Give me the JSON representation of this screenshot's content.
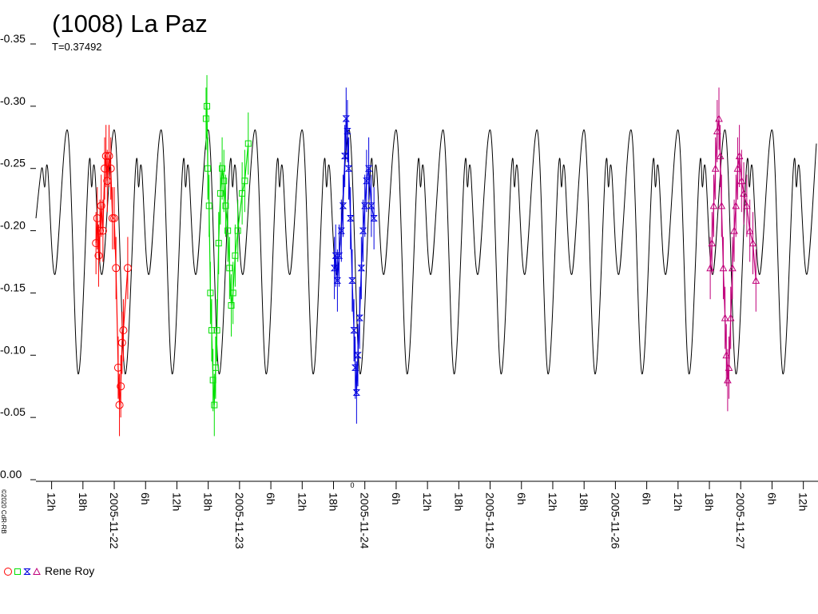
{
  "chart_data": {
    "type": "lightcurve",
    "title": "(1008) La Paz",
    "subtitle": "T=0.37492",
    "copyright": "©2020 CdR-RB",
    "zero_label": "0",
    "observer": "Rene Roy",
    "xlim": [
      "2005-11-21 09:00",
      "2005-11-27 14:30"
    ],
    "ylim": [
      0,
      -0.35
    ],
    "yticks": [
      {
        "value": 0,
        "label": "0.00"
      },
      {
        "value": -0.05,
        "label": "-0.05"
      },
      {
        "value": -0.1,
        "label": "-0.10"
      },
      {
        "value": -0.15,
        "label": "-0.15"
      },
      {
        "value": -0.2,
        "label": "-0.20"
      },
      {
        "value": -0.25,
        "label": "-0.25"
      },
      {
        "value": -0.3,
        "label": "-0.30"
      },
      {
        "value": -0.35,
        "label": "-0.35"
      }
    ],
    "xticks": [
      {
        "value": "2005-11-21 12:00",
        "label": "12h"
      },
      {
        "value": "2005-11-21 18:00",
        "label": "18h"
      },
      {
        "value": "2005-11-22 00:00",
        "label": "2005-11-22"
      },
      {
        "value": "2005-11-22 06:00",
        "label": "6h"
      },
      {
        "value": "2005-11-22 12:00",
        "label": "12h"
      },
      {
        "value": "2005-11-22 18:00",
        "label": "18h"
      },
      {
        "value": "2005-11-23 00:00",
        "label": "2005-11-23"
      },
      {
        "value": "2005-11-23 06:00",
        "label": "6h"
      },
      {
        "value": "2005-11-23 12:00",
        "label": "12h"
      },
      {
        "value": "2005-11-23 18:00",
        "label": "18h"
      },
      {
        "value": "2005-11-24 00:00",
        "label": "2005-11-24"
      },
      {
        "value": "2005-11-24 06:00",
        "label": "6h"
      },
      {
        "value": "2005-11-24 12:00",
        "label": "12h"
      },
      {
        "value": "2005-11-24 18:00",
        "label": "18h"
      },
      {
        "value": "2005-11-25 00:00",
        "label": "2005-11-25"
      },
      {
        "value": "2005-11-25 06:00",
        "label": "6h"
      },
      {
        "value": "2005-11-25 12:00",
        "label": "12h"
      },
      {
        "value": "2005-11-25 18:00",
        "label": "18h"
      },
      {
        "value": "2005-11-26 00:00",
        "label": "2005-11-26"
      },
      {
        "value": "2005-11-26 06:00",
        "label": "6h"
      },
      {
        "value": "2005-11-26 12:00",
        "label": "12h"
      },
      {
        "value": "2005-11-26 18:00",
        "label": "18h"
      },
      {
        "value": "2005-11-27 00:00",
        "label": "2005-11-27"
      },
      {
        "value": "2005-11-27 06:00",
        "label": "6h"
      },
      {
        "value": "2005-11-27 12:00",
        "label": "12h"
      }
    ],
    "model": {
      "color": "#000000",
      "x": [
        "2005-11-21 09:00",
        "2005-11-21 10:05",
        "2005-11-21 10:40",
        "2005-11-21 11:15",
        "2005-11-21 12:40",
        "2005-11-21 15:05",
        "2005-11-21 17:05",
        "2005-11-21 19:05",
        "2005-11-21 19:40",
        "2005-11-21 20:15",
        "2005-11-21 21:40",
        "2005-11-22 00:05",
        "2005-11-22 02:05",
        "2005-11-22 04:05",
        "2005-11-22 04:40",
        "2005-11-22 05:15",
        "2005-11-22 06:40",
        "2005-11-22 09:05",
        "2005-11-22 11:05",
        "2005-11-22 13:05",
        "2005-11-22 13:40",
        "2005-11-22 14:15",
        "2005-11-22 15:40",
        "2005-11-22 18:05",
        "2005-11-22 20:05",
        "2005-11-22 22:05",
        "2005-11-22 22:40",
        "2005-11-22 23:15",
        "2005-11-23 00:40",
        "2005-11-23 03:05",
        "2005-11-23 05:05",
        "2005-11-23 07:05",
        "2005-11-23 07:40",
        "2005-11-23 08:15",
        "2005-11-23 09:40",
        "2005-11-23 12:05",
        "2005-11-23 14:05",
        "2005-11-23 16:05",
        "2005-11-23 16:40",
        "2005-11-23 17:15",
        "2005-11-23 18:40",
        "2005-11-23 21:05",
        "2005-11-23 23:05",
        "2005-11-24 01:05",
        "2005-11-24 01:40",
        "2005-11-24 02:15",
        "2005-11-24 03:40",
        "2005-11-24 06:05",
        "2005-11-24 08:05",
        "2005-11-24 10:05",
        "2005-11-24 10:40",
        "2005-11-24 11:15",
        "2005-11-24 12:40",
        "2005-11-24 15:05",
        "2005-11-24 17:05",
        "2005-11-24 19:05",
        "2005-11-24 19:40",
        "2005-11-24 20:15",
        "2005-11-24 21:40",
        "2005-11-25 00:05",
        "2005-11-25 02:05",
        "2005-11-25 04:05",
        "2005-11-25 04:40",
        "2005-11-25 05:15",
        "2005-11-25 06:40",
        "2005-11-25 09:05",
        "2005-11-25 11:05",
        "2005-11-25 13:05",
        "2005-11-25 13:40",
        "2005-11-25 14:15",
        "2005-11-25 15:40",
        "2005-11-25 18:05",
        "2005-11-25 20:05",
        "2005-11-25 22:05",
        "2005-11-25 22:40",
        "2005-11-25 23:15",
        "2005-11-26 00:40",
        "2005-11-26 03:05",
        "2005-11-26 05:05",
        "2005-11-26 07:05",
        "2005-11-26 07:40",
        "2005-11-26 08:15",
        "2005-11-26 09:40",
        "2005-11-26 12:05",
        "2005-11-26 14:05",
        "2005-11-26 16:05",
        "2005-11-26 16:40",
        "2005-11-26 17:15",
        "2005-11-26 18:40",
        "2005-11-26 21:05",
        "2005-11-26 23:05",
        "2005-11-27 01:05",
        "2005-11-27 01:40",
        "2005-11-27 02:15",
        "2005-11-27 03:40",
        "2005-11-27 06:05",
        "2005-11-27 08:05",
        "2005-11-27 10:05",
        "2005-11-27 10:40",
        "2005-11-27 11:15",
        "2005-11-27 12:40",
        "2005-11-27 14:30"
      ],
      "values": [
        -0.21,
        -0.25,
        -0.235,
        -0.25,
        -0.165,
        -0.28,
        -0.085,
        -0.25,
        -0.235,
        -0.25,
        -0.165,
        -0.28,
        -0.085,
        -0.25,
        -0.235,
        -0.25,
        -0.165,
        -0.28,
        -0.085,
        -0.25,
        -0.235,
        -0.25,
        -0.165,
        -0.28,
        -0.085,
        -0.25,
        -0.235,
        -0.25,
        -0.165,
        -0.28,
        -0.085,
        -0.25,
        -0.235,
        -0.25,
        -0.165,
        -0.28,
        -0.085,
        -0.25,
        -0.235,
        -0.25,
        -0.165,
        -0.28,
        -0.085,
        -0.25,
        -0.235,
        -0.25,
        -0.165,
        -0.28,
        -0.085,
        -0.25,
        -0.235,
        -0.25,
        -0.165,
        -0.28,
        -0.085,
        -0.25,
        -0.235,
        -0.25,
        -0.165,
        -0.28,
        -0.085,
        -0.25,
        -0.235,
        -0.25,
        -0.165,
        -0.28,
        -0.085,
        -0.25,
        -0.235,
        -0.25,
        -0.165,
        -0.28,
        -0.085,
        -0.25,
        -0.235,
        -0.25,
        -0.165,
        -0.28,
        -0.085,
        -0.25,
        -0.235,
        -0.25,
        -0.165,
        -0.28,
        -0.085,
        -0.25,
        -0.235,
        -0.25,
        -0.165,
        -0.28,
        -0.085,
        -0.25,
        -0.235,
        -0.25,
        -0.165,
        -0.28,
        -0.085,
        -0.25,
        -0.235,
        -0.25,
        -0.165,
        -0.27
      ]
    },
    "series": [
      {
        "color": "#ff0000",
        "marker": "circle",
        "error": 0.025,
        "x": [
          "2005-11-21 20:30",
          "2005-11-21 20:45",
          "2005-11-21 21:00",
          "2005-11-21 21:15",
          "2005-11-21 21:30",
          "2005-11-21 21:50",
          "2005-11-21 22:10",
          "2005-11-21 22:25",
          "2005-11-21 22:40",
          "2005-11-21 23:00",
          "2005-11-21 23:20",
          "2005-11-21 23:40",
          "2005-11-22 00:00",
          "2005-11-22 00:20",
          "2005-11-22 00:45",
          "2005-11-22 01:00",
          "2005-11-22 01:15",
          "2005-11-22 01:30",
          "2005-11-22 01:45",
          "2005-11-22 02:35"
        ],
        "values": [
          -0.19,
          -0.21,
          -0.18,
          -0.2,
          -0.22,
          -0.2,
          -0.25,
          -0.26,
          -0.24,
          -0.26,
          -0.25,
          -0.21,
          -0.21,
          -0.17,
          -0.09,
          -0.06,
          -0.075,
          -0.11,
          -0.12,
          -0.17
        ]
      },
      {
        "color": "#00e000",
        "marker": "square",
        "error": 0.025,
        "x": [
          "2005-11-22 17:35",
          "2005-11-22 17:45",
          "2005-11-22 17:55",
          "2005-11-22 18:10",
          "2005-11-22 18:25",
          "2005-11-22 18:40",
          "2005-11-22 18:55",
          "2005-11-22 19:10",
          "2005-11-22 19:25",
          "2005-11-22 19:40",
          "2005-11-22 20:00",
          "2005-11-22 20:20",
          "2005-11-22 20:40",
          "2005-11-22 21:00",
          "2005-11-22 21:20",
          "2005-11-22 21:45",
          "2005-11-22 22:05",
          "2005-11-22 22:25",
          "2005-11-22 22:45",
          "2005-11-22 23:10",
          "2005-11-22 23:40",
          "2005-11-23 00:30",
          "2005-11-23 01:00",
          "2005-11-23 01:40"
        ],
        "values": [
          -0.29,
          -0.3,
          -0.25,
          -0.22,
          -0.15,
          -0.12,
          -0.08,
          -0.06,
          -0.09,
          -0.12,
          -0.19,
          -0.23,
          -0.25,
          -0.24,
          -0.22,
          -0.2,
          -0.17,
          -0.14,
          -0.15,
          -0.18,
          -0.2,
          -0.23,
          -0.24,
          -0.27
        ]
      },
      {
        "color": "#0000e0",
        "marker": "bowtie",
        "error": 0.025,
        "x": [
          "2005-11-23 18:10",
          "2005-11-23 18:25",
          "2005-11-23 18:45",
          "2005-11-23 19:05",
          "2005-11-23 19:30",
          "2005-11-23 19:50",
          "2005-11-23 20:10",
          "2005-11-23 20:25",
          "2005-11-23 20:40",
          "2005-11-23 20:55",
          "2005-11-23 21:15",
          "2005-11-23 21:35",
          "2005-11-23 21:55",
          "2005-11-23 22:10",
          "2005-11-23 22:25",
          "2005-11-23 22:40",
          "2005-11-23 23:00",
          "2005-11-23 23:20",
          "2005-11-23 23:40",
          "2005-11-24 00:00",
          "2005-11-24 00:20",
          "2005-11-24 00:45",
          "2005-11-24 01:15",
          "2005-11-24 01:45"
        ],
        "values": [
          -0.17,
          -0.18,
          -0.16,
          -0.18,
          -0.2,
          -0.22,
          -0.26,
          -0.29,
          -0.28,
          -0.25,
          -0.21,
          -0.16,
          -0.12,
          -0.09,
          -0.07,
          -0.1,
          -0.13,
          -0.17,
          -0.2,
          -0.22,
          -0.24,
          -0.25,
          -0.22,
          -0.21
        ]
      },
      {
        "color": "#c0007a",
        "marker": "triangle",
        "error": 0.025,
        "x": [
          "2005-11-26 18:10",
          "2005-11-26 18:30",
          "2005-11-26 18:50",
          "2005-11-26 19:10",
          "2005-11-26 19:30",
          "2005-11-26 19:50",
          "2005-11-26 20:05",
          "2005-11-26 20:20",
          "2005-11-26 20:40",
          "2005-11-26 21:00",
          "2005-11-26 21:15",
          "2005-11-26 21:30",
          "2005-11-26 21:45",
          "2005-11-26 22:05",
          "2005-11-26 22:25",
          "2005-11-26 22:45",
          "2005-11-26 23:05",
          "2005-11-26 23:25",
          "2005-11-26 23:45",
          "2005-11-27 00:10",
          "2005-11-27 00:35",
          "2005-11-27 01:10",
          "2005-11-27 01:45",
          "2005-11-27 02:20",
          "2005-11-27 02:55"
        ],
        "values": [
          -0.17,
          -0.19,
          -0.22,
          -0.25,
          -0.28,
          -0.29,
          -0.26,
          -0.22,
          -0.17,
          -0.13,
          -0.1,
          -0.08,
          -0.09,
          -0.13,
          -0.17,
          -0.2,
          -0.22,
          -0.25,
          -0.26,
          -0.24,
          -0.23,
          -0.22,
          -0.2,
          -0.19,
          -0.16
        ]
      }
    ]
  }
}
